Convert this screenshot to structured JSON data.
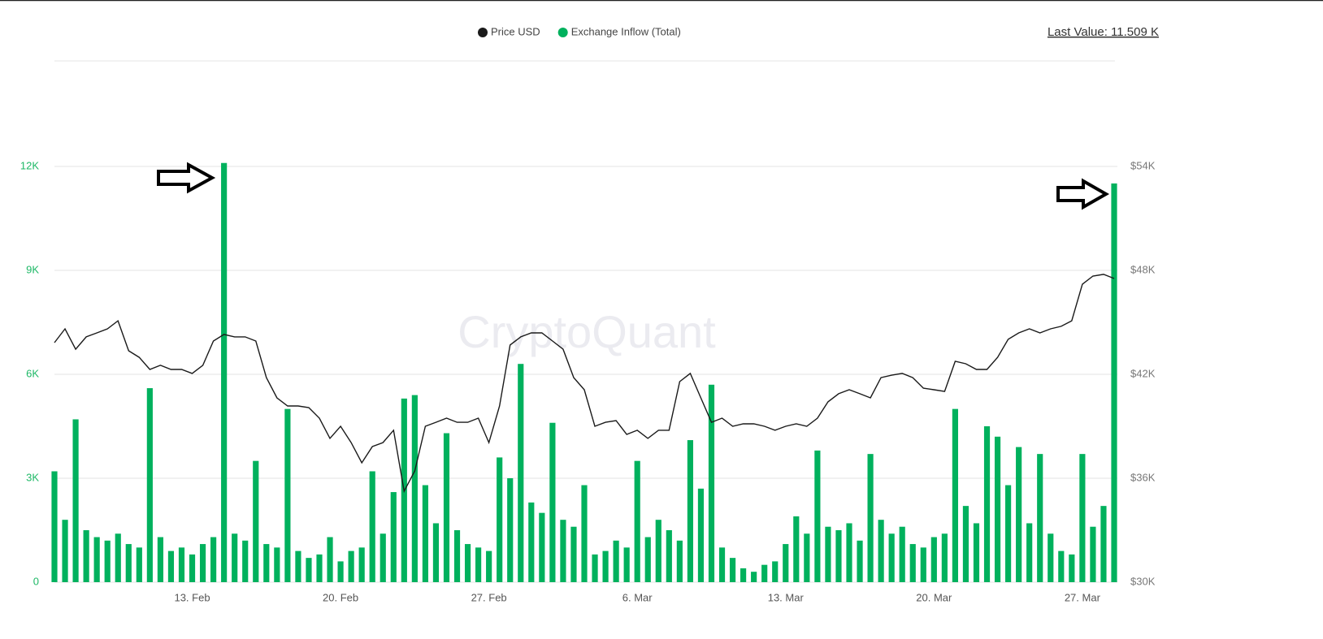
{
  "chart_data": {
    "type": "combo",
    "last_value_label": "Last Value: 11.509 K",
    "watermark": "CryptoQuant",
    "categories": [
      null,
      null,
      null,
      null,
      null,
      null,
      null,
      null,
      null,
      null,
      null,
      null,
      null,
      "13. Feb",
      null,
      null,
      null,
      null,
      null,
      null,
      null,
      null,
      null,
      null,
      null,
      null,
      null,
      "20. Feb",
      null,
      null,
      null,
      null,
      null,
      null,
      null,
      null,
      null,
      null,
      null,
      null,
      null,
      "27. Feb",
      null,
      null,
      null,
      null,
      null,
      null,
      null,
      null,
      null,
      null,
      null,
      null,
      null,
      "6. Mar",
      null,
      null,
      null,
      null,
      null,
      null,
      null,
      null,
      null,
      null,
      null,
      null,
      null,
      "13. Mar",
      null,
      null,
      null,
      null,
      null,
      null,
      null,
      null,
      null,
      null,
      null,
      null,
      null,
      "20. Mar",
      null,
      null,
      null,
      null,
      null,
      null,
      null,
      null,
      null,
      null,
      null,
      null,
      null,
      "27. Mar",
      null,
      null,
      null
    ],
    "series": [
      {
        "name": "Price USD",
        "type": "line",
        "axis": "y2",
        "color": "#1a1a1a",
        "values": [
          43830,
          44625,
          43450,
          44160,
          44390,
          44625,
          45090,
          43360,
          42980,
          42280,
          42520,
          42280,
          42280,
          42050,
          42520,
          43920,
          44300,
          44160,
          44160,
          43920,
          41810,
          40640,
          40170,
          40170,
          40080,
          39470,
          38300,
          39000,
          38060,
          36890,
          37830,
          38060,
          38770,
          35250,
          36420,
          39000,
          39230,
          39470,
          39230,
          39230,
          39470,
          38060,
          40170,
          43690,
          44160,
          44390,
          44390,
          43920,
          43450,
          41810,
          41110,
          39000,
          39230,
          39330,
          38530,
          38770,
          38300,
          38770,
          38770,
          41580,
          42050,
          40640,
          39230,
          39470,
          39000,
          39140,
          39140,
          39000,
          38770,
          39000,
          39140,
          39000,
          39470,
          40410,
          40880,
          41110,
          40880,
          40640,
          41810,
          41950,
          42050,
          41810,
          41200,
          41110,
          41010,
          42750,
          42610,
          42280,
          42280,
          42980,
          44020,
          44390,
          44625,
          44390,
          44625,
          44770,
          45090,
          47200,
          47670,
          47770,
          47530
        ]
      },
      {
        "name": "Exchange Inflow (Total)",
        "type": "bar",
        "color": "#00b15d",
        "values": [
          3200,
          1800,
          4700,
          1500,
          1300,
          1200,
          1400,
          1100,
          1000,
          5600,
          1300,
          900,
          1000,
          800,
          1100,
          1300,
          12100,
          1400,
          1200,
          3500,
          1100,
          1000,
          5000,
          900,
          700,
          800,
          1300,
          600,
          900,
          1000,
          3200,
          1400,
          2600,
          5300,
          5400,
          2800,
          1700,
          4300,
          1500,
          1100,
          1000,
          900,
          3600,
          3000,
          6300,
          2300,
          2000,
          4600,
          1800,
          1600,
          2800,
          800,
          900,
          1200,
          1000,
          3500,
          1300,
          1800,
          1500,
          1200,
          4100,
          2700,
          5700,
          1000,
          700,
          400,
          300,
          500,
          600,
          1100,
          1900,
          1400,
          3800,
          1600,
          1500,
          1700,
          1200,
          3700,
          1800,
          1400,
          1600,
          1100,
          1000,
          1300,
          1400,
          5000,
          2200,
          1700,
          4500,
          4200,
          2800,
          3900,
          1700,
          3700,
          1400,
          900,
          800,
          3700,
          1600,
          2200,
          11509
        ]
      }
    ],
    "ylim": [
      0,
      12000
    ],
    "yticks": [
      0,
      {
        "value": 3000,
        "label": "3K"
      },
      {
        "value": 6000,
        "label": "6K"
      },
      {
        "value": 9000,
        "label": "9K"
      },
      {
        "value": 12000,
        "label": "12K"
      }
    ],
    "y2lim": [
      30000,
      54000
    ],
    "y2ticks": [
      {
        "value": 30000,
        "label": "$30K"
      },
      {
        "value": 36000,
        "label": "$36K"
      },
      {
        "value": 42000,
        "label": "$42K"
      },
      {
        "value": 48000,
        "label": "$48K"
      },
      {
        "value": 54000,
        "label": "$54K"
      }
    ],
    "grid": true
  }
}
